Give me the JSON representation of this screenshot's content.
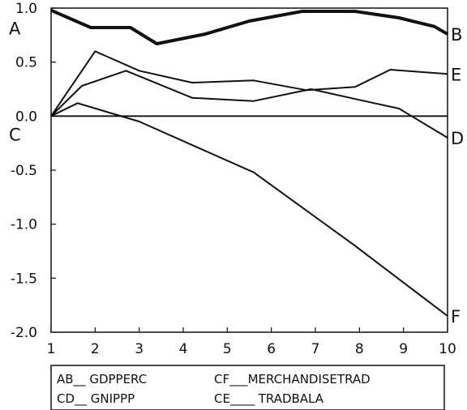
{
  "chart_data": {
    "type": "line",
    "x_ticks": [
      "1",
      "2",
      "3",
      "4",
      "5",
      "6",
      "7",
      "8",
      "9",
      "10"
    ],
    "y_ticks": [
      "1.0",
      "0.5",
      "0.0",
      "-0.5",
      "-1.0",
      "-1.5",
      "-2.0"
    ],
    "xlim": [
      1,
      10
    ],
    "ylim": [
      -2.0,
      1.0
    ],
    "grid": false,
    "zero_line": true,
    "series": [
      {
        "name": "GDPPERC",
        "start_label": "A",
        "end_label": "B",
        "color": "#111111",
        "bold": true,
        "x": [
          1,
          1.9,
          2.8,
          3.4,
          4.5,
          5.5,
          6.7,
          7.9,
          8.9,
          9.7,
          10
        ],
        "y": [
          0.98,
          0.82,
          0.82,
          0.67,
          0.76,
          0.88,
          0.97,
          0.97,
          0.91,
          0.83,
          0.76
        ]
      },
      {
        "name": "GNIPPP",
        "start_label": "C",
        "end_label": "D",
        "color": "#111111",
        "bold": false,
        "x": [
          1,
          1.7,
          2.7,
          4.2,
          5.6,
          6.9,
          8.0,
          8.9,
          10
        ],
        "y": [
          0.0,
          0.28,
          0.42,
          0.17,
          0.14,
          0.25,
          0.15,
          0.07,
          -0.2
        ]
      },
      {
        "name": "TRADBALA",
        "start_label": "",
        "end_label": "E",
        "color": "#111111",
        "bold": false,
        "x": [
          1,
          2.0,
          3.0,
          4.2,
          5.6,
          6.8,
          7.9,
          8.7,
          10
        ],
        "y": [
          0.0,
          0.6,
          0.42,
          0.31,
          0.33,
          0.24,
          0.27,
          0.43,
          0.39
        ]
      },
      {
        "name": "MERCHANDISETRAD",
        "start_label": "",
        "end_label": "F",
        "color": "#111111",
        "bold": false,
        "x": [
          1,
          1.6,
          3.0,
          5.6,
          7.9,
          10
        ],
        "y": [
          0.0,
          0.12,
          -0.05,
          -0.52,
          -1.2,
          -1.85
        ]
      }
    ]
  },
  "legend": {
    "entries": [
      "AB__ GDPPERC",
      "CF___MERCHANDISETRAD",
      "CD__ GNIPPP",
      "CE____ TRADBALA"
    ]
  }
}
